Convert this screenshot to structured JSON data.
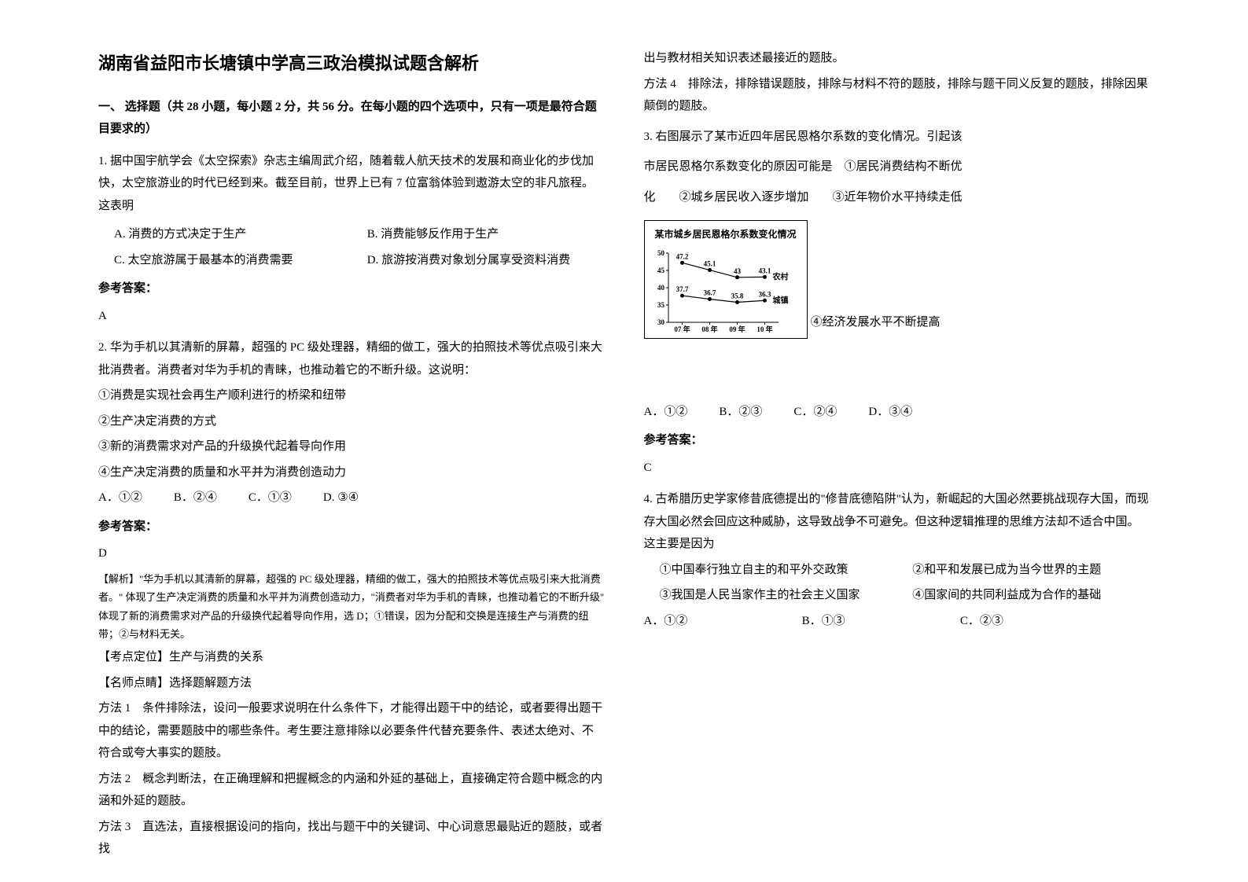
{
  "title": "湖南省益阳市长塘镇中学高三政治模拟试题含解析",
  "section1_header": "一、 选择题（共 28 小题，每小题 2 分，共 56 分。在每小题的四个选项中，只有一项是最符合题目要求的）",
  "q1": {
    "text": "1. 据中国宇航学会《太空探索》杂志主编周武介绍，随着载人航天技术的发展和商业化的步伐加快，太空旅游业的时代已经到来。截至目前，世界上已有 7 位富翁体验到遨游太空的非凡旅程。这表明",
    "optA": "A. 消费的方式决定于生产",
    "optB": "B. 消费能够反作用于生产",
    "optC": "C. 太空旅游属于最基本的消费需要",
    "optD": "D. 旅游按消费对象划分属享受资料消费",
    "answer_label": "参考答案：",
    "answer_value": "A"
  },
  "q2": {
    "text": "2. 华为手机以其清新的屏幕，超强的 PC 级处理器，精细的做工，强大的拍照技术等优点吸引来大批消费者。消费者对华为手机的青睐，也推动着它的不断升级。这说明：",
    "s1": "①消费是实现社会再生产顺利进行的桥梁和纽带",
    "s2": "②生产决定消费的方式",
    "s3": "③新的消费需求对产品的升级换代起着导向作用",
    "s4": "④生产决定消费的质量和水平并为消费创造动力",
    "optA": "A．①②",
    "optB": "B．②④",
    "optC": "C．①③",
    "optD": "D. ③④",
    "answer_label": "参考答案：",
    "answer_value": "D",
    "explain1": "【解析】\"华为手机以其清新的屏幕，超强的 PC 级处理器，精细的做工，强大的拍照技术等优点吸引来大批消费者。\" 体现了生产决定消费的质量和水平并为消费创造动力，\"消费者对华为手机的青睐，也推动着它的不断升级\" 体现了新的消费需求对产品的升级换代起着导向作用，选 D；①错误，因为分配和交换是连接生产与消费的纽带；②与材料无关。",
    "explain2": "【考点定位】生产与消费的关系",
    "explain3": "【名师点睛】选择题解题方法",
    "m1": "方法 1　条件排除法，设问一般要求说明在什么条件下，才能得出题干中的结论，或者要得出题干中的结论，需要题肢中的哪些条件。考生要注意排除以必要条件代替充要条件、表述太绝对、不符合或夸大事实的题肢。",
    "m2": "方法 2　概念判断法，在正确理解和把握概念的内涵和外延的基础上，直接确定符合题中概念的内涵和外延的题肢。",
    "m3": "方法 3　直选法，直接根据设问的指向，找出与题干中的关键词、中心词意思最贴近的题肢，或者找"
  },
  "right_col": {
    "m3_cont": "出与教材相关知识表述最接近的题肢。",
    "m4": "方法 4　排除法，排除错误题肢，排除与材料不符的题肢，排除与题干同义反复的题肢，排除因果颠倒的题肢。",
    "q3_text1": "3. 右图展示了某市近四年居民恩格尔系数的变化情况。引起该",
    "q3_text2": "市居民恩格尔系数变化的原因可能是　①居民消费结构不断优",
    "q3_text3": "化　　②城乡居民收入逐步增加　　③近年物价水平持续走低",
    "q3_text4": "④经济发展水平不断提高",
    "chart": {
      "title": "某市城乡居民恩格尔系数变化情况",
      "ylabels": [
        "50",
        "45",
        "40",
        "35",
        "30"
      ],
      "xlabels": [
        "07 年",
        "08 年",
        "09 年",
        "10 年"
      ],
      "series_rural": {
        "label": "农村",
        "color": "#000000",
        "values": [
          47.2,
          45.1,
          43,
          43.1
        ],
        "value_labels": [
          "47.2",
          "45.1",
          "43",
          "43.1"
        ]
      },
      "series_urban": {
        "label": "城镇",
        "color": "#000000",
        "values": [
          37.7,
          36.7,
          35.8,
          36.3
        ],
        "value_labels": [
          "37.7",
          "36.7",
          "35.8",
          "36.3"
        ]
      },
      "ylim": [
        30,
        50
      ],
      "width": 190,
      "height": 110
    },
    "q3_optA": "A．①②",
    "q3_optB": "B．②③",
    "q3_optC": "C．②④",
    "q3_optD": "D．③④",
    "q3_answer_label": "参考答案：",
    "q3_answer_value": "C",
    "q4_text": "4. 古希腊历史学家修昔底德提出的\"修昔底德陷阱\"认为，新崛起的大国必然要挑战现存大国，而现存大国必然会回应这种威胁，这导致战争不可避免。但这种逻辑推理的思维方法却不适合中国。这主要是因为",
    "q4_s1": "①中国奉行独立自主的和平外交政策",
    "q4_s2": "②和平和发展已成为当今世界的主题",
    "q4_s3": "③我国是人民当家作主的社会主义国家",
    "q4_s4": "④国家间的共同利益成为合作的基础",
    "q4_optA": "A．①②",
    "q4_optB": "B．①③",
    "q4_optC": "C．②③"
  }
}
